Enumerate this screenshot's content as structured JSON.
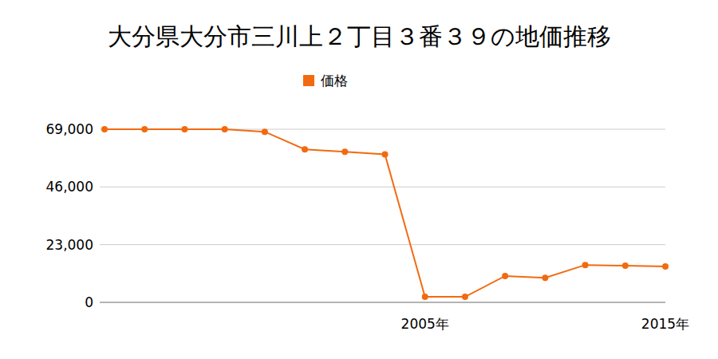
{
  "chart_data": {
    "type": "line",
    "title": "大分県大分市三川上２丁目３番３９の地価推移",
    "categories": [
      null,
      null,
      null,
      null,
      null,
      null,
      null,
      null,
      "2005年",
      null,
      null,
      null,
      null,
      null,
      "2015年"
    ],
    "series": [
      {
        "name": "価格",
        "color": "#f26a10",
        "marker": "circle",
        "values": [
          69000,
          69000,
          69000,
          69000,
          68000,
          61000,
          60000,
          59000,
          2200,
          2200,
          10500,
          9800,
          14900,
          14600,
          14300
        ]
      }
    ],
    "ylim": [
      0,
      69000
    ],
    "yticks": [
      0,
      {
        "value": 23000,
        "label": "23,000"
      },
      {
        "value": 46000,
        "label": "46,000"
      },
      {
        "value": 69000,
        "label": "69,000"
      }
    ],
    "grid": true,
    "legend": "top"
  }
}
